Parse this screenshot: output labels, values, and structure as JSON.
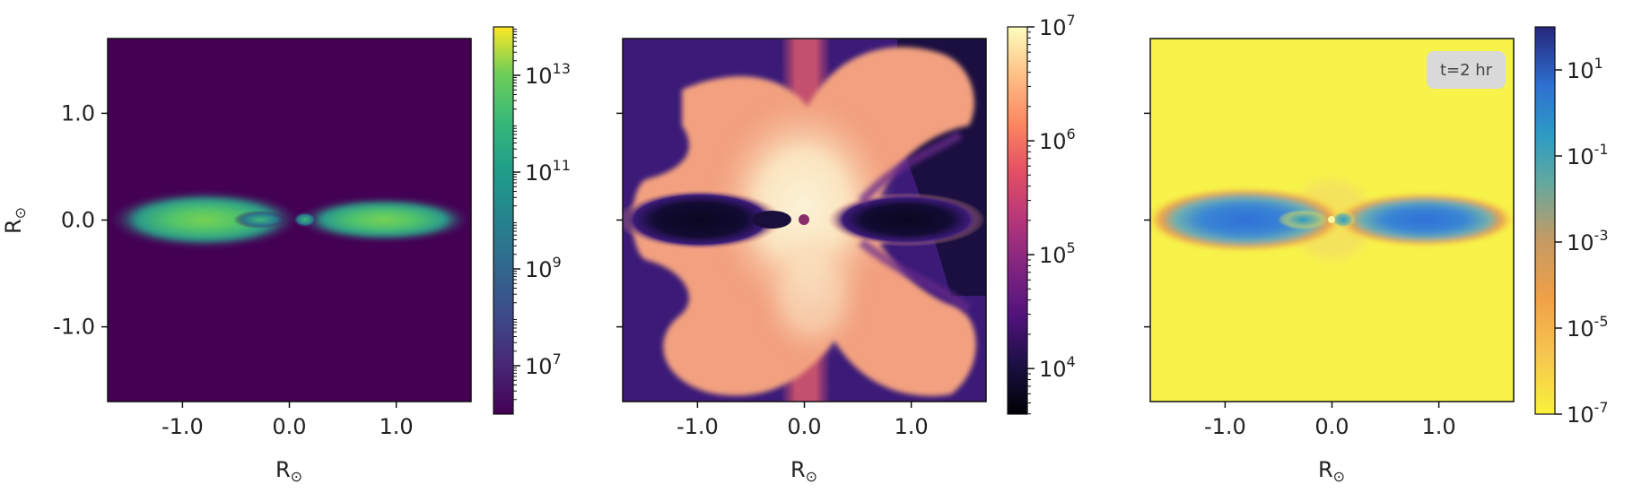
{
  "chart_data": [
    {
      "type": "heatmap",
      "xlabel": "R",
      "ylabel": "R",
      "axis_unit_symbol": "⊙",
      "xlim": [
        -1.7,
        1.7
      ],
      "ylim": [
        -1.7,
        1.7
      ],
      "xticks": [
        "-1.0",
        "0.0",
        "1.0"
      ],
      "yticks": [
        "1.0",
        "0.0",
        "-1.0"
      ],
      "colormap": "viridis",
      "colorbar": {
        "scale": "log",
        "range_exp": [
          6,
          14
        ],
        "tick_exponents": [
          "13",
          "11",
          "9",
          "7"
        ]
      },
      "background_color": "#440154"
    },
    {
      "type": "heatmap",
      "xlabel": "R",
      "axis_unit_symbol": "⊙",
      "xlim": [
        -1.7,
        1.7
      ],
      "ylim": [
        -1.7,
        1.7
      ],
      "xticks": [
        "-1.0",
        "0.0",
        "1.0"
      ],
      "colormap": "magma",
      "colorbar": {
        "scale": "log",
        "range_exp": [
          3.6,
          7
        ],
        "tick_exponents": [
          "7",
          "6",
          "5",
          "4"
        ]
      }
    },
    {
      "type": "heatmap",
      "xlabel": "R",
      "axis_unit_symbol": "⊙",
      "xlim": [
        -1.7,
        1.7
      ],
      "ylim": [
        -1.7,
        1.7
      ],
      "xticks": [
        "-1.0",
        "0.0",
        "1.0"
      ],
      "colormap": "plasma_r",
      "colorbar": {
        "scale": "log",
        "range_exp": [
          -7,
          2
        ],
        "tick_exponents": [
          "1",
          "-1",
          "-3",
          "-5",
          "-7"
        ]
      },
      "annotation": "t=2 hr",
      "background_color": "#f7f34a"
    }
  ],
  "colors": {
    "panel1_bg": "#440154",
    "panel1_disk_outer": "#2a788e",
    "panel1_disk_inner": "#7ad151",
    "panel2_dark": "#0d0829",
    "panel2_purple": "#3b1a78",
    "panel2_salmon": "#f2a07f",
    "panel2_cream": "#fbe3c0",
    "panel3_bg": "#f7f34a",
    "panel3_disk_outer": "#f0a048",
    "panel3_disk_inner": "#3474d6"
  }
}
